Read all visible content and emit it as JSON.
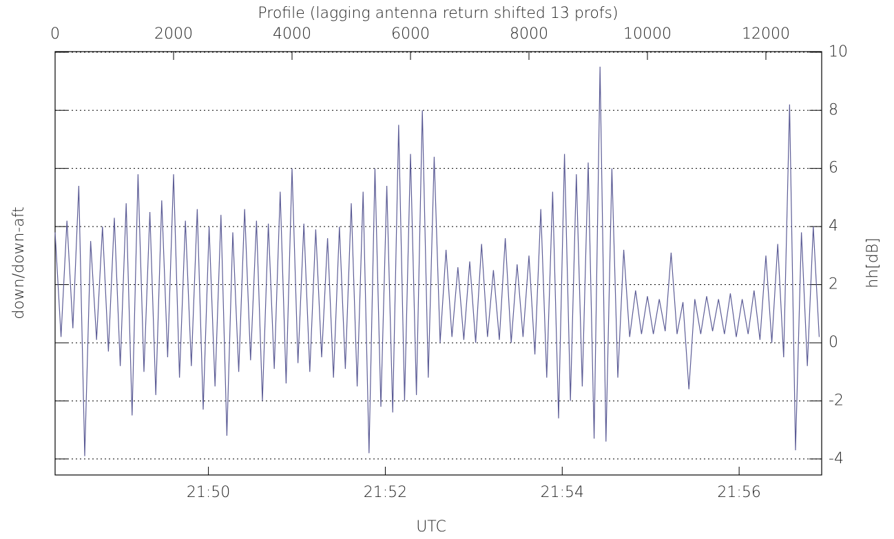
{
  "chart_data": {
    "type": "line",
    "x_label": "Profile (lagging antenna return shifted 13 profs)",
    "y_label": "down/down-aft",
    "y2_label": "hh[dB]",
    "x2_label": "UTC",
    "x": [
      0,
      100,
      200,
      300,
      400,
      500,
      600,
      700,
      800,
      900,
      1000,
      1100,
      1200,
      1300,
      1400,
      1500,
      1600,
      1700,
      1800,
      1900,
      2000,
      2100,
      2200,
      2300,
      2400,
      2500,
      2600,
      2700,
      2800,
      2900,
      3000,
      3100,
      3200,
      3300,
      3400,
      3500,
      3600,
      3700,
      3800,
      3900,
      4000,
      4100,
      4200,
      4300,
      4400,
      4500,
      4600,
      4700,
      4800,
      4900,
      5000,
      5100,
      5200,
      5300,
      5400,
      5500,
      5600,
      5700,
      5800,
      5900,
      6000,
      6100,
      6200,
      6300,
      6400,
      6500,
      6600,
      6700,
      6800,
      6900,
      7000,
      7100,
      7200,
      7300,
      7400,
      7500,
      7600,
      7700,
      7800,
      7900,
      8000,
      8100,
      8200,
      8300,
      8400,
      8500,
      8600,
      8700,
      8800,
      8900,
      9000,
      9100,
      9200,
      9300,
      9400,
      9500,
      9600,
      9700,
      9800,
      9900,
      10000,
      10100,
      10200,
      10300,
      10400,
      10500,
      10600,
      10700,
      10800,
      10900,
      11000,
      11100,
      11200,
      11300,
      11400,
      11500,
      11600,
      11700,
      11800,
      11900,
      12000,
      12100,
      12200,
      12300,
      12400,
      12500,
      12600,
      12700,
      12800,
      12900
    ],
    "series": [
      {
        "color": "#5c5c96",
        "values": [
          3.8,
          0.2,
          4.2,
          0.5,
          5.4,
          -3.9,
          3.5,
          0.1,
          4.0,
          -0.3,
          4.3,
          -0.8,
          4.8,
          -2.5,
          5.8,
          -1.0,
          4.5,
          -1.8,
          4.9,
          -0.5,
          5.8,
          -1.2,
          4.2,
          -0.8,
          4.6,
          -2.3,
          4.0,
          -1.5,
          4.4,
          -3.2,
          3.8,
          -1.0,
          4.6,
          -0.6,
          4.2,
          -2.0,
          4.1,
          -0.9,
          5.2,
          -1.4,
          6.0,
          -0.7,
          4.1,
          -1.0,
          3.9,
          -0.5,
          3.6,
          -1.2,
          4.0,
          -0.9,
          4.8,
          -1.5,
          5.2,
          -3.8,
          6.0,
          -2.2,
          5.4,
          -2.4,
          7.5,
          -2.0,
          6.5,
          -1.8,
          8.0,
          -1.2,
          6.4,
          0.0,
          3.2,
          0.2,
          2.6,
          0.1,
          2.8,
          0.0,
          3.4,
          0.2,
          2.5,
          0.1,
          3.6,
          0.0,
          2.7,
          0.2,
          3.0,
          -0.4,
          4.6,
          -1.2,
          5.2,
          -2.6,
          6.5,
          -2.0,
          5.8,
          -1.5,
          6.2,
          -3.3,
          9.5,
          -3.4,
          6.0,
          -1.2,
          3.2,
          0.2,
          1.8,
          0.3,
          1.6,
          0.3,
          1.5,
          0.4,
          3.1,
          0.3,
          1.4,
          -1.6,
          1.5,
          0.3,
          1.6,
          0.4,
          1.5,
          0.3,
          1.7,
          0.2,
          1.5,
          0.3,
          1.8,
          0.1,
          3.0,
          0.0,
          3.4,
          -0.5,
          8.2,
          -3.7,
          3.8,
          -0.8,
          4.0,
          0.2
        ]
      }
    ],
    "xlim": [
      0,
      12942
    ],
    "xticks": [
      0,
      2000,
      4000,
      6000,
      8000,
      10000,
      12000
    ],
    "x2lim": [
      "21:48:16",
      "21:56:56"
    ],
    "x2ticks": [
      "21:50",
      "21:52",
      "21:54",
      "21:56"
    ],
    "ylim": [
      -4.55,
      10.02
    ],
    "yticks": [
      -4,
      -2,
      0,
      2,
      4,
      6,
      8,
      10
    ],
    "grid": true
  }
}
